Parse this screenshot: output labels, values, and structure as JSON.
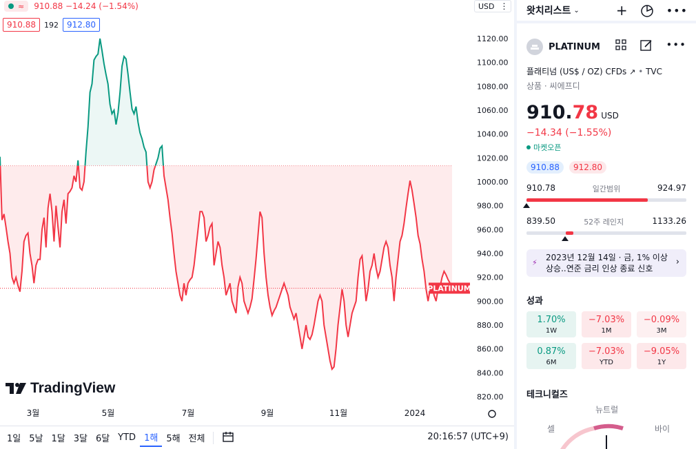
{
  "chart": {
    "legend_symbol_icon": "wave-icon",
    "last_price": "910.88",
    "change": "−14.24",
    "change_pct": "(−1.54%)",
    "bid": "910.88",
    "spread": "192",
    "ask": "912.80",
    "currency": "USD",
    "price_label": "PLATINUM",
    "y_ticks": [
      "1120.00",
      "1100.00",
      "1080.00",
      "1060.00",
      "1040.00",
      "1020.00",
      "1000.00",
      "980.00",
      "960.00",
      "940.00",
      "920.00",
      "900.00",
      "880.00",
      "860.00",
      "840.00",
      "820.00"
    ],
    "x_ticks": [
      "3월",
      "5월",
      "7월",
      "9월",
      "11월",
      "2024"
    ],
    "logo_text": "TradingView"
  },
  "chart_data": {
    "type": "area",
    "baseline": 1013.5,
    "last_value": 910.88,
    "ylim": [
      810,
      1130
    ],
    "y": [
      1021,
      968,
      973,
      962,
      950,
      940,
      920,
      915,
      920,
      913,
      908,
      925,
      950,
      955,
      957,
      940,
      930,
      915,
      930,
      935,
      935,
      960,
      970,
      945,
      978,
      990,
      975,
      950,
      980,
      962,
      945,
      975,
      985,
      965,
      990,
      992,
      995,
      1005,
      1000,
      1018,
      995,
      993,
      1000,
      1025,
      1046,
      1075,
      1082,
      1102,
      1105,
      1107,
      1120,
      1110,
      1099,
      1090,
      1082,
      1065,
      1057,
      1060,
      1048,
      1058,
      1075,
      1097,
      1105,
      1103,
      1090,
      1075,
      1061,
      1057,
      1063,
      1050,
      1041,
      1036,
      1029,
      1025,
      1000,
      995,
      1000,
      1010,
      1015,
      1020,
      1028,
      1030,
      1005,
      995,
      985,
      970,
      957,
      940,
      925,
      915,
      905,
      900,
      915,
      905,
      915,
      918,
      920,
      930,
      945,
      960,
      975,
      975,
      970,
      950,
      955,
      962,
      965,
      930,
      940,
      950,
      945,
      930,
      920,
      905,
      910,
      915,
      900,
      895,
      890,
      912,
      920,
      915,
      900,
      895,
      890,
      895,
      902,
      918,
      935,
      955,
      975,
      970,
      940,
      920,
      905,
      895,
      888,
      892,
      895,
      900,
      905,
      910,
      915,
      910,
      905,
      895,
      890,
      885,
      890,
      880,
      870,
      860,
      870,
      880,
      870,
      868,
      872,
      880,
      890,
      900,
      905,
      900,
      880,
      870,
      860,
      850,
      843,
      845,
      860,
      880,
      895,
      910,
      900,
      880,
      870,
      880,
      890,
      895,
      900,
      920,
      935,
      938,
      920,
      900,
      910,
      925,
      930,
      940,
      928,
      920,
      925,
      935,
      945,
      950,
      945,
      930,
      920,
      900,
      920,
      935,
      950,
      955,
      965,
      978,
      990,
      1001,
      993,
      982,
      970,
      955,
      948,
      935,
      925,
      910,
      900,
      910,
      915,
      905,
      900,
      910,
      912,
      920,
      925,
      922,
      918,
      915,
      910
    ]
  },
  "bottom_bar": {
    "ranges": [
      "1일",
      "5날",
      "1달",
      "3달",
      "6달",
      "YTD",
      "1해",
      "5해",
      "전체"
    ],
    "active_range": "1해",
    "calendar_icon": "calendar-icon",
    "time": "20:16:57 (UTC+9)"
  },
  "sidebar": {
    "title": "왓치리스트",
    "symbol": "PLATINUM",
    "description": "플래티넘 (US$ / OZ) CFDs",
    "source": "TVC",
    "category": "상품 · 씨에프디",
    "price_main": "910.",
    "price_decimal": "78",
    "currency": "USD",
    "change": "−14.34 (−1.55%)",
    "market_status": "마켓오픈",
    "bid": "910.88",
    "ask": "912.80",
    "day_low": "910.78",
    "day_label": "일간범위",
    "day_high": "924.97",
    "day_position": 0.0,
    "year_low": "839.50",
    "year_label": "52주 레인지",
    "year_high": "1133.26",
    "year_position": 0.24,
    "news_text": "2023년 12월 14일 · 금, 1% 이상 상승..연준 금리 인상 종료 신호",
    "performance_title": "성과",
    "performance": [
      {
        "value": "1.70%",
        "label": "1W",
        "tone": "green"
      },
      {
        "value": "−7.03%",
        "label": "1M",
        "tone": "red"
      },
      {
        "value": "−0.09%",
        "label": "3M",
        "tone": "lightred"
      },
      {
        "value": "0.87%",
        "label": "6M",
        "tone": "green"
      },
      {
        "value": "−7.03%",
        "label": "YTD",
        "tone": "red"
      },
      {
        "value": "−9.05%",
        "label": "1Y",
        "tone": "red"
      }
    ],
    "technicals_title": "테크니컬즈",
    "gauge_neutral": "뉴트럴",
    "gauge_sell": "셀",
    "gauge_buy": "바이"
  },
  "colors": {
    "up": "#089981",
    "down": "#f23645",
    "accent": "#2962ff"
  }
}
